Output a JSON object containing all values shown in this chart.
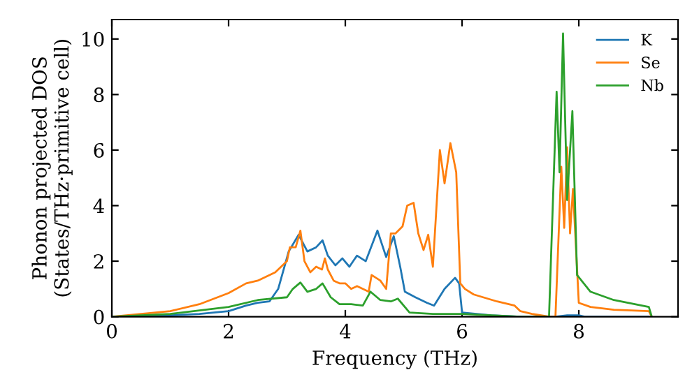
{
  "chart_data": {
    "type": "line",
    "xlabel": "Frequency (THz)",
    "ylabel": "Phonon projected DOS\n(States/THz·primitive cell)",
    "xlim": [
      0,
      9.7
    ],
    "ylim": [
      0,
      10.7
    ],
    "xticks": [
      0,
      2,
      4,
      6,
      8
    ],
    "yticks": [
      0,
      2,
      4,
      6,
      8,
      10
    ],
    "grid": false,
    "legend": "top right",
    "marker": "none",
    "line_style": "solid",
    "series": [
      {
        "name": "K",
        "color": "#1f77b4",
        "x": [
          0,
          1,
          1.5,
          2,
          2.3,
          2.5,
          2.7,
          2.85,
          3.03,
          3.2,
          3.35,
          3.5,
          3.61,
          3.7,
          3.83,
          3.95,
          4.07,
          4.2,
          4.35,
          4.55,
          4.7,
          4.83,
          4.94,
          5.02,
          5.2,
          5.4,
          5.52,
          5.7,
          5.88,
          5.95,
          6.0,
          6.5,
          7.0,
          7.6,
          7.8,
          8.0,
          8.1,
          9.2
        ],
        "values": [
          0,
          0.05,
          0.1,
          0.2,
          0.4,
          0.5,
          0.55,
          1.0,
          2.35,
          2.95,
          2.35,
          2.5,
          2.75,
          2.2,
          1.85,
          2.1,
          1.8,
          2.2,
          2.0,
          3.1,
          2.15,
          2.9,
          1.8,
          0.9,
          0.7,
          0.5,
          0.4,
          1.0,
          1.4,
          1.2,
          0.15,
          0.05,
          0,
          0,
          0.05,
          0.05,
          0,
          0
        ]
      },
      {
        "name": "Se",
        "color": "#ff7f0e",
        "x": [
          0,
          1,
          1.5,
          2,
          2.3,
          2.5,
          2.8,
          3.0,
          3.05,
          3.15,
          3.23,
          3.3,
          3.4,
          3.5,
          3.6,
          3.65,
          3.7,
          3.8,
          3.9,
          4.0,
          4.1,
          4.2,
          4.4,
          4.45,
          4.6,
          4.7,
          4.78,
          4.86,
          4.98,
          5.06,
          5.17,
          5.25,
          5.34,
          5.42,
          5.5,
          5.62,
          5.7,
          5.8,
          5.9,
          5.97,
          6.05,
          6.2,
          6.6,
          6.9,
          7.0,
          7.2,
          7.5,
          7.6,
          7.7,
          7.75,
          7.8,
          7.85,
          7.9,
          8.0,
          8.2,
          8.6,
          9.2,
          9.25
        ],
        "values": [
          0,
          0.2,
          0.45,
          0.85,
          1.2,
          1.3,
          1.6,
          2.0,
          2.5,
          2.5,
          3.1,
          2.0,
          1.6,
          1.8,
          1.7,
          2.1,
          1.7,
          1.3,
          1.2,
          1.2,
          1.0,
          1.1,
          0.9,
          1.5,
          1.3,
          1.0,
          3.0,
          3.0,
          3.25,
          4.0,
          4.1,
          3.0,
          2.4,
          2.95,
          1.8,
          6.0,
          4.8,
          6.25,
          5.2,
          1.2,
          1.0,
          0.8,
          0.55,
          0.4,
          0.2,
          0.1,
          0.0,
          0.0,
          5.4,
          3.2,
          6.1,
          3.0,
          4.6,
          0.5,
          0.35,
          0.25,
          0.2,
          0.0
        ]
      },
      {
        "name": "Nb",
        "color": "#2ca02c",
        "x": [
          0,
          1,
          2,
          2.5,
          3.0,
          3.1,
          3.23,
          3.35,
          3.5,
          3.61,
          3.75,
          3.9,
          4.1,
          4.3,
          4.43,
          4.6,
          4.78,
          4.9,
          5.1,
          5.5,
          6.0,
          6.5,
          7.0,
          7.49,
          7.62,
          7.67,
          7.73,
          7.8,
          7.89,
          7.97,
          8.2,
          8.6,
          9.2,
          9.25
        ],
        "values": [
          0,
          0.1,
          0.35,
          0.6,
          0.7,
          1.0,
          1.23,
          0.9,
          1.0,
          1.2,
          0.7,
          0.45,
          0.45,
          0.4,
          0.9,
          0.6,
          0.55,
          0.65,
          0.15,
          0.1,
          0.1,
          0.05,
          0,
          0,
          8.1,
          5.2,
          10.2,
          4.2,
          7.4,
          1.5,
          0.9,
          0.6,
          0.35,
          0
        ]
      }
    ]
  }
}
